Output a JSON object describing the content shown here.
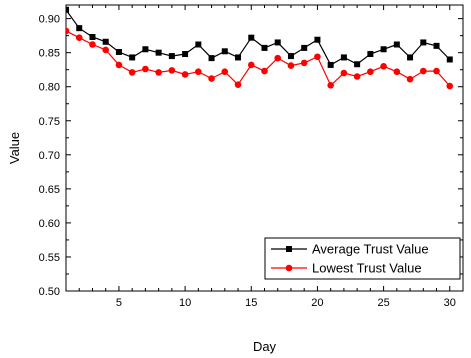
{
  "chart_data": {
    "type": "line",
    "title": "",
    "xlabel": "Day",
    "ylabel": "Value",
    "xlim": [
      1,
      31
    ],
    "ylim": [
      0.5,
      0.92
    ],
    "x_ticks": [
      5,
      10,
      15,
      20,
      25,
      30
    ],
    "y_ticks": [
      0.5,
      0.55,
      0.6,
      0.65,
      0.7,
      0.75,
      0.8,
      0.85,
      0.9
    ],
    "grid": false,
    "legend_position": "bottom-right",
    "x": [
      1,
      2,
      3,
      4,
      5,
      6,
      7,
      8,
      9,
      10,
      11,
      12,
      13,
      14,
      15,
      16,
      17,
      18,
      19,
      20,
      21,
      22,
      23,
      24,
      25,
      26,
      27,
      28,
      29,
      30
    ],
    "series": [
      {
        "name": "Average Trust Value",
        "color": "#000000",
        "marker": "square",
        "values": [
          0.913,
          0.886,
          0.873,
          0.866,
          0.851,
          0.843,
          0.855,
          0.85,
          0.845,
          0.848,
          0.862,
          0.842,
          0.852,
          0.843,
          0.872,
          0.857,
          0.865,
          0.845,
          0.857,
          0.869,
          0.832,
          0.843,
          0.833,
          0.848,
          0.855,
          0.862,
          0.843,
          0.865,
          0.86,
          0.84
        ]
      },
      {
        "name": "Lowest Trust Value",
        "color": "#ff0000",
        "marker": "circle",
        "values": [
          0.882,
          0.872,
          0.862,
          0.854,
          0.832,
          0.821,
          0.826,
          0.821,
          0.824,
          0.818,
          0.822,
          0.812,
          0.822,
          0.803,
          0.832,
          0.823,
          0.842,
          0.831,
          0.835,
          0.844,
          0.802,
          0.82,
          0.815,
          0.822,
          0.83,
          0.822,
          0.811,
          0.823,
          0.823,
          0.801
        ]
      }
    ]
  }
}
